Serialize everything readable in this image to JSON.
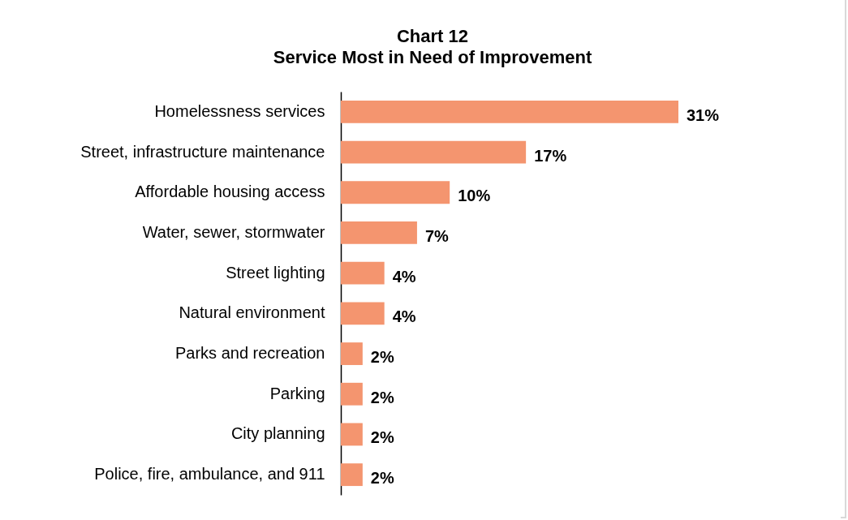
{
  "chart_data": {
    "type": "bar",
    "orientation": "horizontal",
    "title": "Chart 12",
    "subtitle": "Service Most in Need of Improvement",
    "categories": [
      "Homelessness services",
      "Street, infrastructure maintenance",
      "Affordable housing access",
      "Water, sewer, stormwater",
      "Street lighting",
      "Natural environment",
      "Parks and recreation",
      "Parking",
      "City planning",
      "Police, fire, ambulance, and 911"
    ],
    "values": [
      31,
      17,
      10,
      7,
      4,
      4,
      2,
      2,
      2,
      2
    ],
    "value_labels": [
      "31%",
      "17%",
      "10%",
      "7%",
      "4%",
      "4%",
      "2%",
      "2%",
      "2%",
      "2%"
    ],
    "color": "#f4956f"
  }
}
